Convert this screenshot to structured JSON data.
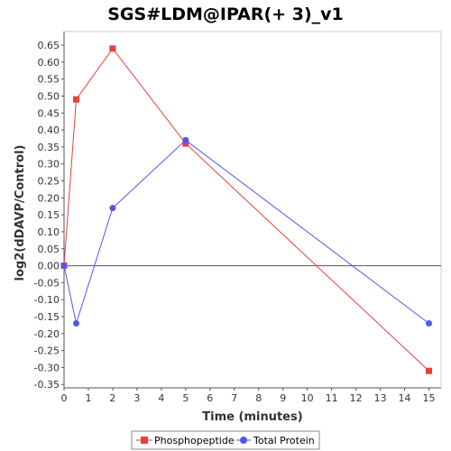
{
  "chart_data": {
    "type": "line",
    "title": "SGS#LDM@IPAR(+ 3)_v1",
    "xlabel": "Time (minutes)",
    "ylabel": "log2(dDAVP/Control)",
    "xlim": [
      0,
      15.5
    ],
    "ylim": [
      -0.36,
      0.69
    ],
    "x_ticks": [
      0,
      1,
      2,
      3,
      4,
      5,
      6,
      7,
      8,
      9,
      10,
      11,
      12,
      13,
      14,
      15
    ],
    "y_ticks": [
      -0.35,
      -0.3,
      -0.25,
      -0.2,
      -0.15,
      -0.1,
      -0.05,
      0.0,
      0.05,
      0.1,
      0.15,
      0.2,
      0.25,
      0.3,
      0.35,
      0.4,
      0.45,
      0.5,
      0.55,
      0.6,
      0.65
    ],
    "y_tick_labels": [
      "-0.35",
      "-0.30",
      "-0.25",
      "-0.20",
      "-0.15",
      "-0.10",
      "-0.05",
      "0.00",
      "0.05",
      "0.10",
      "0.15",
      "0.20",
      "0.25",
      "0.30",
      "0.35",
      "0.40",
      "0.45",
      "0.50",
      "0.55",
      "0.60",
      "0.65"
    ],
    "zero_line": true,
    "grid": false,
    "legend_position": "bottom",
    "series": [
      {
        "name": "Phosphopeptide",
        "color": "#e8403c",
        "marker": "square",
        "x": [
          0,
          0.5,
          2,
          5,
          15
        ],
        "y": [
          0.0,
          0.49,
          0.64,
          0.36,
          -0.31
        ]
      },
      {
        "name": "Total Protein",
        "color": "#5555ee",
        "marker": "circle",
        "x": [
          0,
          0.5,
          2,
          5,
          15
        ],
        "y": [
          0.0,
          -0.17,
          0.17,
          0.37,
          -0.17
        ]
      }
    ]
  }
}
